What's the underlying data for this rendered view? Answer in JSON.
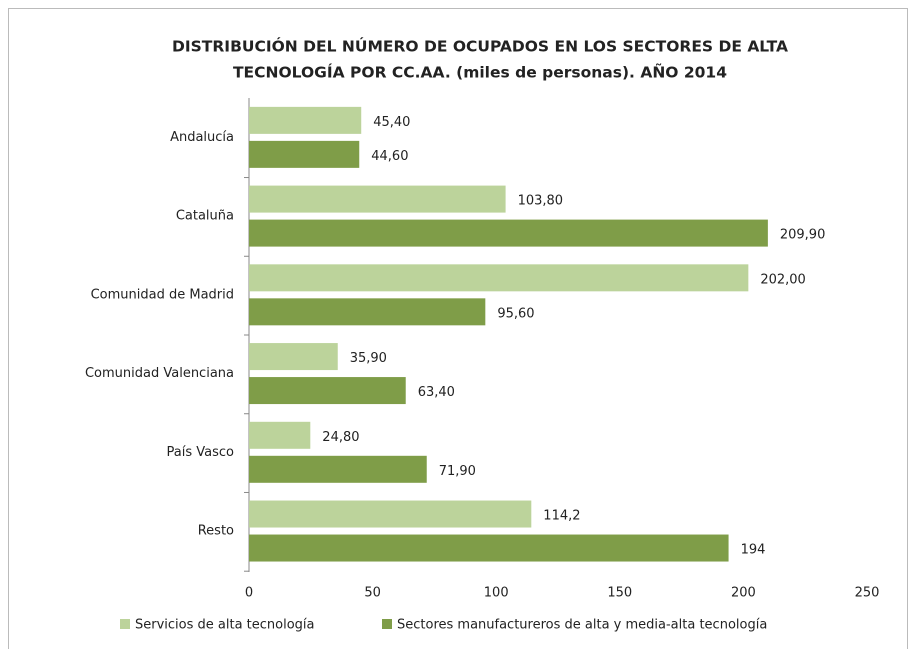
{
  "chart_data": {
    "type": "barh",
    "title": [
      "DISTRIBUCIÓN  DEL NÚMERO DE OCUPADOS EN LOS SECTORES DE ALTA",
      "TECNOLOGÍA POR CC.AA.  (miles de personas). AÑO 2014"
    ],
    "categories": [
      "Andalucía",
      "Cataluña",
      "Comunidad de Madrid",
      "Comunidad Valenciana",
      "País Vasco",
      "Resto"
    ],
    "series": [
      {
        "name": "Servicios de alta tecnología",
        "color": "#bcd39b",
        "values": [
          45.4,
          103.8,
          202.0,
          35.9,
          24.8,
          114.2
        ],
        "value_labels": [
          "45,40",
          "103,80",
          "202,00",
          "35,90",
          "24,80",
          "114,2"
        ]
      },
      {
        "name": "Sectores manufactureros de alta y media-alta tecnología",
        "color": "#7f9d48",
        "values": [
          44.6,
          209.9,
          95.6,
          63.4,
          71.9,
          194
        ],
        "value_labels": [
          "44,60",
          "209,90",
          "95,60",
          "63,40",
          "71,90",
          "194"
        ]
      }
    ],
    "xlim": [
      0,
      250
    ],
    "xticks": [
      0,
      50,
      100,
      150,
      200,
      250
    ],
    "grid": false,
    "legend": "bottom"
  }
}
